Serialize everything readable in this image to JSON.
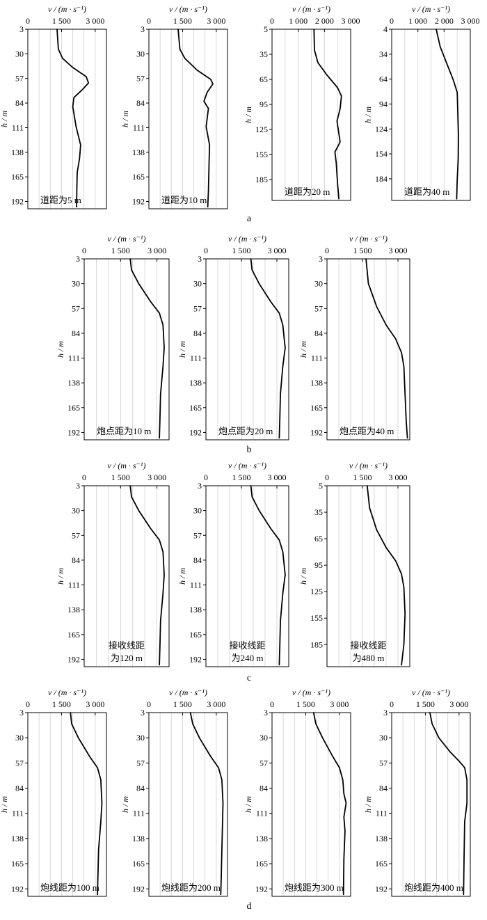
{
  "figure": {
    "axis_title_x": "v / (m · s⁻¹)",
    "axis_title_y": "h / m"
  },
  "rows": [
    {
      "label": "a",
      "panels": [
        0,
        1,
        2,
        3
      ]
    },
    {
      "label": "b",
      "panels": [
        4,
        5,
        6
      ]
    },
    {
      "label": "c",
      "panels": [
        7,
        8,
        9
      ]
    },
    {
      "label": "d",
      "panels": [
        10,
        11,
        12,
        13
      ]
    }
  ],
  "chart_data": [
    {
      "type": "line",
      "row": "a",
      "caption": [
        "道距为5 m"
      ],
      "xlabel": "v / (m · s⁻¹)",
      "ylabel": "h / m",
      "xlim": [
        0,
        3500
      ],
      "ylim": [
        3,
        200
      ],
      "xticks": [
        "0",
        "1 500",
        "3 000"
      ],
      "xtick_values": [
        0,
        1500,
        3000
      ],
      "yticks": [
        3,
        30,
        57,
        84,
        111,
        138,
        165,
        192
      ],
      "series": [
        {
          "v": [
            1300,
            1360,
            1550,
            2000,
            2600,
            2700,
            2400,
            2050,
            2000,
            2150,
            2350,
            2300,
            2200,
            2180,
            2170
          ],
          "h": [
            3,
            25,
            35,
            45,
            55,
            62,
            70,
            78,
            88,
            110,
            130,
            145,
            160,
            180,
            198
          ]
        }
      ]
    },
    {
      "type": "line",
      "row": "a",
      "caption": [
        "道距为10 m"
      ],
      "xlabel": "v / (m · s⁻¹)",
      "ylabel": "h / m",
      "xlim": [
        0,
        3500
      ],
      "ylim": [
        3,
        200
      ],
      "xticks": [
        "0",
        "1 500",
        "3 000"
      ],
      "xtick_values": [
        0,
        1500,
        3000
      ],
      "yticks": [
        3,
        30,
        57,
        84,
        111,
        138,
        165,
        192
      ],
      "series": [
        {
          "v": [
            1300,
            1380,
            1600,
            2150,
            2750,
            2850,
            2600,
            2450,
            2650,
            2600,
            2550,
            2700,
            2680,
            2650,
            2620
          ],
          "h": [
            3,
            25,
            35,
            48,
            58,
            63,
            72,
            82,
            90,
            100,
            110,
            130,
            150,
            180,
            198
          ]
        }
      ]
    },
    {
      "type": "line",
      "row": "a",
      "caption": [
        "道距为20 m"
      ],
      "xlabel": "v / (m · s⁻¹)",
      "ylabel": "h / m",
      "xlim": [
        0,
        3000
      ],
      "ylim": [
        5,
        210
      ],
      "xticks": [
        "0",
        "1 000",
        "2 000",
        "3 000"
      ],
      "xtick_values": [
        0,
        1000,
        2000,
        3000
      ],
      "yticks": [
        5,
        35,
        65,
        95,
        125,
        155,
        185
      ],
      "series": [
        {
          "v": [
            1600,
            1620,
            1750,
            2100,
            2500,
            2650,
            2600,
            2480,
            2550,
            2600,
            2400,
            2450,
            2500,
            2550
          ],
          "h": [
            5,
            30,
            45,
            60,
            75,
            85,
            100,
            115,
            130,
            140,
            152,
            165,
            190,
            208
          ]
        }
      ]
    },
    {
      "type": "line",
      "row": "a",
      "caption": [
        "道距为40 m"
      ],
      "xlabel": "v / (m · s⁻¹)",
      "ylabel": "h / m",
      "xlim": [
        0,
        3000
      ],
      "ylim": [
        4,
        210
      ],
      "xticks": [
        "0",
        "1 000",
        "2 000",
        "3 000"
      ],
      "xtick_values": [
        0,
        1000,
        2000,
        3000
      ],
      "yticks": [
        4,
        34,
        64,
        94,
        124,
        154,
        184
      ],
      "series": [
        {
          "v": [
            1700,
            1850,
            2100,
            2350,
            2500,
            2520,
            2550,
            2540,
            2500,
            2480
          ],
          "h": [
            4,
            25,
            45,
            65,
            80,
            100,
            130,
            160,
            185,
            208
          ]
        }
      ]
    },
    {
      "type": "line",
      "row": "b",
      "caption": [
        "炮点距为10 m"
      ],
      "xlabel": "v / (m · s⁻¹)",
      "ylabel": "h / m",
      "xlim": [
        0,
        3500
      ],
      "ylim": [
        3,
        200
      ],
      "xticks": [
        "0",
        "1 500",
        "3 000"
      ],
      "xtick_values": [
        0,
        1500,
        3000
      ],
      "yticks": [
        3,
        30,
        57,
        84,
        111,
        138,
        165,
        192
      ],
      "series": [
        {
          "v": [
            1900,
            1950,
            2250,
            2750,
            3100,
            3250,
            3300,
            3250,
            3150,
            3120,
            3100
          ],
          "h": [
            3,
            15,
            30,
            50,
            62,
            75,
            100,
            120,
            150,
            180,
            198
          ]
        }
      ]
    },
    {
      "type": "line",
      "row": "b",
      "caption": [
        "炮点距为20 m"
      ],
      "xlabel": "v / (m · s⁻¹)",
      "ylabel": "h / m",
      "xlim": [
        0,
        3500
      ],
      "ylim": [
        3,
        200
      ],
      "xticks": [
        "0",
        "1 500",
        "3 000"
      ],
      "xtick_values": [
        0,
        1500,
        3000
      ],
      "yticks": [
        3,
        30,
        57,
        84,
        111,
        138,
        165,
        192
      ],
      "series": [
        {
          "v": [
            1900,
            1950,
            2250,
            2750,
            3100,
            3250,
            3350,
            3250,
            3150,
            3120,
            3100
          ],
          "h": [
            3,
            15,
            30,
            50,
            62,
            75,
            100,
            120,
            150,
            180,
            198
          ]
        }
      ]
    },
    {
      "type": "line",
      "row": "b",
      "caption": [
        "炮点距为40 m"
      ],
      "xlabel": "v / (m · s⁻¹)",
      "ylabel": "h / m",
      "xlim": [
        0,
        3500
      ],
      "ylim": [
        3,
        200
      ],
      "xticks": [
        "0",
        "1 500",
        "3 000"
      ],
      "xtick_values": [
        0,
        1500,
        3000
      ],
      "yticks": [
        3,
        30,
        57,
        84,
        111,
        138,
        165,
        192
      ],
      "series": [
        {
          "v": [
            1650,
            1750,
            2100,
            2500,
            2900,
            3150,
            3250,
            3300,
            3350,
            3400
          ],
          "h": [
            3,
            30,
            55,
            75,
            90,
            105,
            120,
            150,
            180,
            198
          ]
        }
      ]
    },
    {
      "type": "line",
      "row": "c",
      "caption": [
        "接收线距",
        "为120 m"
      ],
      "xlabel": "v / (m · s⁻¹)",
      "ylabel": "h / m",
      "xlim": [
        0,
        3500
      ],
      "ylim": [
        3,
        200
      ],
      "xticks": [
        "0",
        "1 500",
        "3 000"
      ],
      "xtick_values": [
        0,
        1500,
        3000
      ],
      "yticks": [
        3,
        30,
        57,
        84,
        111,
        138,
        165,
        192
      ],
      "series": [
        {
          "v": [
            1900,
            1950,
            2250,
            2750,
            3100,
            3250,
            3300,
            3250,
            3150,
            3120,
            3100
          ],
          "h": [
            3,
            15,
            30,
            50,
            62,
            75,
            100,
            120,
            150,
            180,
            198
          ]
        }
      ]
    },
    {
      "type": "line",
      "row": "c",
      "caption": [
        "接收线距",
        "为240 m"
      ],
      "xlabel": "v / (m · s⁻¹)",
      "ylabel": "h / m",
      "xlim": [
        0,
        3500
      ],
      "ylim": [
        3,
        200
      ],
      "xticks": [
        "0",
        "1 500",
        "3 000"
      ],
      "xtick_values": [
        0,
        1500,
        3000
      ],
      "yticks": [
        3,
        30,
        57,
        84,
        111,
        138,
        165,
        192
      ],
      "series": [
        {
          "v": [
            1900,
            1950,
            2250,
            2750,
            3100,
            3250,
            3350,
            3250,
            3150,
            3120,
            3100
          ],
          "h": [
            3,
            15,
            30,
            50,
            62,
            75,
            100,
            120,
            150,
            180,
            198
          ]
        }
      ]
    },
    {
      "type": "line",
      "row": "c",
      "caption": [
        "接收线距",
        "为480 m"
      ],
      "xlabel": "v / (m · s⁻¹)",
      "ylabel": "h / m",
      "xlim": [
        0,
        3500
      ],
      "ylim": [
        5,
        210
      ],
      "xticks": [
        "0",
        "1 500",
        "3 000"
      ],
      "xtick_values": [
        0,
        1500,
        3000
      ],
      "yticks": [
        5,
        35,
        65,
        95,
        125,
        155,
        185
      ],
      "series": [
        {
          "v": [
            1700,
            1800,
            2100,
            2500,
            2900,
            3150,
            3250,
            3300,
            3250,
            3150
          ],
          "h": [
            5,
            30,
            55,
            75,
            90,
            105,
            120,
            150,
            185,
            208
          ]
        }
      ]
    },
    {
      "type": "line",
      "row": "d",
      "caption": [
        "炮线距为100 m"
      ],
      "xlabel": "v / (m · s⁻¹)",
      "ylabel": "h / m",
      "xlim": [
        0,
        3500
      ],
      "ylim": [
        3,
        200
      ],
      "xticks": [
        "0",
        "1 500",
        "3 000"
      ],
      "xtick_values": [
        0,
        1500,
        3000
      ],
      "yticks": [
        3,
        30,
        57,
        84,
        111,
        138,
        165,
        192
      ],
      "series": [
        {
          "v": [
            1900,
            1950,
            2250,
            2750,
            3100,
            3250,
            3300,
            3250,
            3150,
            3120,
            3100
          ],
          "h": [
            3,
            15,
            30,
            50,
            62,
            75,
            100,
            120,
            150,
            180,
            198
          ]
        }
      ]
    },
    {
      "type": "line",
      "row": "d",
      "caption": [
        "炮线距为200 m"
      ],
      "xlabel": "v / (m · s⁻¹)",
      "ylabel": "h / m",
      "xlim": [
        0,
        3500
      ],
      "ylim": [
        3,
        200
      ],
      "xticks": [
        "0",
        "1 500",
        "3 000"
      ],
      "xtick_values": [
        0,
        1500,
        3000
      ],
      "yticks": [
        3,
        30,
        57,
        84,
        111,
        138,
        165,
        192
      ],
      "series": [
        {
          "v": [
            1850,
            1950,
            2250,
            2750,
            3100,
            3250,
            3300,
            3280,
            3250,
            3220,
            3200
          ],
          "h": [
            3,
            15,
            30,
            50,
            62,
            75,
            100,
            120,
            150,
            180,
            198
          ]
        }
      ]
    },
    {
      "type": "line",
      "row": "d",
      "caption": [
        "炮线距为300 m"
      ],
      "xlabel": "v / (m · s⁻¹)",
      "ylabel": "h / m",
      "xlim": [
        0,
        3500
      ],
      "ylim": [
        3,
        200
      ],
      "xticks": [
        "0",
        "1 500",
        "3 000"
      ],
      "xtick_values": [
        0,
        1500,
        3000
      ],
      "yticks": [
        3,
        30,
        57,
        84,
        111,
        138,
        165,
        192
      ],
      "series": [
        {
          "v": [
            1850,
            1950,
            2250,
            2700,
            3000,
            3150,
            3200,
            3300,
            3200,
            3250,
            3200,
            3180
          ],
          "h": [
            3,
            15,
            30,
            50,
            62,
            75,
            90,
            100,
            115,
            130,
            160,
            198
          ]
        }
      ]
    },
    {
      "type": "line",
      "row": "d",
      "caption": [
        "炮线距为400 m"
      ],
      "xlabel": "v / (m · s⁻¹)",
      "ylabel": "h / m",
      "xlim": [
        0,
        3500
      ],
      "ylim": [
        3,
        200
      ],
      "xticks": [
        "0",
        "1 500",
        "3 000"
      ],
      "xtick_values": [
        0,
        1500,
        3000
      ],
      "yticks": [
        3,
        30,
        57,
        84,
        111,
        138,
        165,
        192
      ],
      "series": [
        {
          "v": [
            1700,
            1800,
            2100,
            2600,
            3000,
            3250,
            3350,
            3350,
            3250,
            3220,
            3200
          ],
          "h": [
            3,
            15,
            30,
            45,
            55,
            62,
            75,
            100,
            120,
            160,
            198
          ]
        }
      ]
    }
  ]
}
